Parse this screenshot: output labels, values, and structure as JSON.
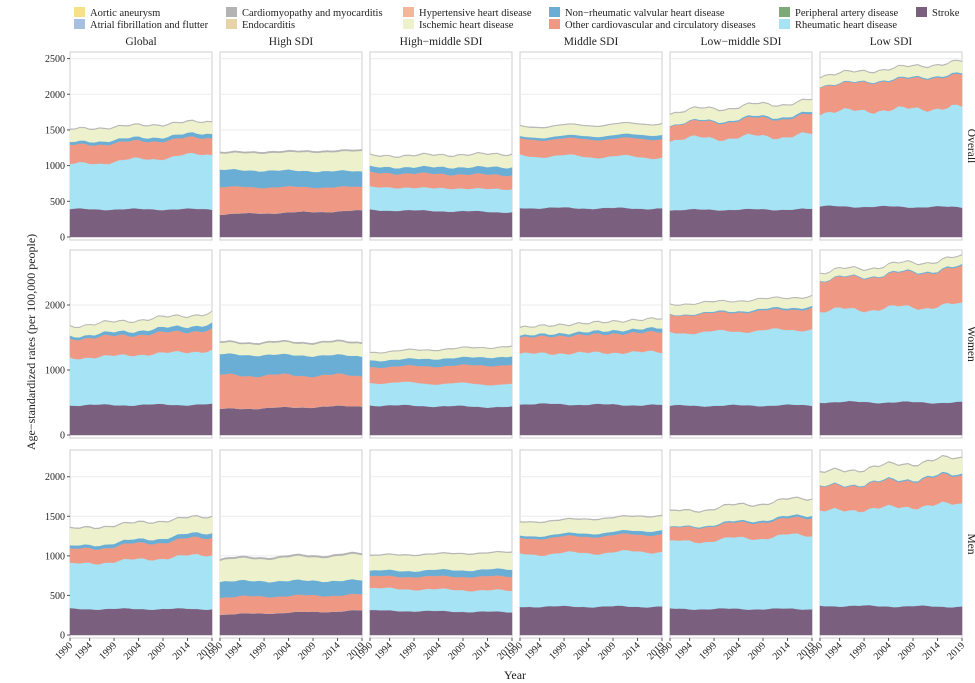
{
  "chart_data": {
    "type": "area",
    "stacked": true,
    "xlabel": "Year",
    "ylabel": "Age−standardized rates (per 100,000 people)",
    "x_ticks": [
      "1990",
      "1994",
      "1999",
      "2004",
      "2009",
      "2014",
      "2019"
    ],
    "x_range": [
      1990,
      2019
    ],
    "columns": [
      "Global",
      "High SDI",
      "High−middle SDI",
      "Middle SDI",
      "Low−middle SDI",
      "Low SDI"
    ],
    "rows": [
      {
        "label": "Overall",
        "ylim": [
          0,
          2550
        ],
        "yticks": [
          0,
          500,
          1000,
          1500,
          2000,
          2500
        ]
      },
      {
        "label": "Women",
        "ylim": [
          0,
          2800
        ],
        "yticks": [
          0,
          1000,
          2000
        ]
      },
      {
        "label": "Men",
        "ylim": [
          0,
          2300
        ],
        "yticks": [
          0,
          500,
          1000,
          1500,
          2000
        ]
      }
    ],
    "legend": [
      {
        "name": "Aortic aneurysm",
        "color": "#f6e08a"
      },
      {
        "name": "Atrial fibrillation and flutter",
        "color": "#a7c0e0"
      },
      {
        "name": "Cardiomyopathy and myocarditis",
        "color": "#b3b3b3"
      },
      {
        "name": "Endocarditis",
        "color": "#e8d2a8"
      },
      {
        "name": "Hypertensive heart disease",
        "color": "#f5b59a"
      },
      {
        "name": "Ischemic heart disease",
        "color": "#eef2cc"
      },
      {
        "name": "Non−rheumatic valvular heart disease",
        "color": "#6aaed6"
      },
      {
        "name": "Other cardiovascular and circulatory diseases",
        "color": "#ef9985"
      },
      {
        "name": "Peripheral artery disease",
        "color": "#7eaa7a"
      },
      {
        "name": "Rheumatic heart disease",
        "color": "#a6e3f5"
      },
      {
        "name": "Stroke",
        "color": "#7b5f7e"
      }
    ],
    "stack_order_bottom_to_top": [
      "Stroke",
      "Rheumatic heart disease",
      "Other cardiovascular and circulatory diseases",
      "Non−rheumatic valvular heart disease",
      "Ischemic heart disease",
      "Cardiomyopathy and myocarditis",
      "Atrial fibrillation and flutter",
      "Hypertensive heart disease",
      "Endocarditis",
      "Peripheral artery disease",
      "Aortic aneurysm"
    ],
    "approx_component_values_1990_to_2019": {
      "Overall": {
        "Global": {
          "Stroke": [
            390,
            390
          ],
          "Rheumatic heart disease": [
            620,
            780
          ],
          "Other cardiovascular and circulatory diseases": [
            270,
            230
          ],
          "Non−rheumatic valvular heart disease": [
            40,
            60
          ],
          "Ischemic heart disease": [
            180,
            160
          ],
          "Cardiomyopathy and myocarditis": [
            10,
            10
          ]
        },
        "High SDI": {
          "Stroke": [
            320,
            370
          ],
          "Rheumatic heart disease": [
            0,
            0
          ],
          "Other cardiovascular and circulatory diseases": [
            380,
            330
          ],
          "Non−rheumatic valvular heart disease": [
            240,
            220
          ],
          "Ischemic heart disease": [
            230,
            280
          ],
          "Cardiomyopathy and myocarditis": [
            20,
            20
          ]
        },
        "High−middle SDI": {
          "Stroke": [
            380,
            350
          ],
          "Rheumatic heart disease": [
            320,
            320
          ],
          "Other cardiovascular and circulatory diseases": [
            200,
            200
          ],
          "Non−rheumatic valvular heart disease": [
            80,
            110
          ],
          "Ischemic heart disease": [
            150,
            180
          ],
          "Cardiomyopathy and myocarditis": [
            10,
            10
          ]
        },
        "Middle SDI": {
          "Stroke": [
            410,
            400
          ],
          "Rheumatic heart disease": [
            730,
            720
          ],
          "Other cardiovascular and circulatory diseases": [
            230,
            260
          ],
          "Non−rheumatic valvular heart disease": [
            30,
            60
          ],
          "Ischemic heart disease": [
            140,
            150
          ],
          "Cardiomyopathy and myocarditis": [
            10,
            10
          ]
        },
        "Low−middle SDI": {
          "Stroke": [
            380,
            390
          ],
          "Rheumatic heart disease": [
            990,
            1040
          ],
          "Other cardiovascular and circulatory diseases": [
            210,
            270
          ],
          "Non−rheumatic valvular heart disease": [
            10,
            30
          ],
          "Ischemic heart disease": [
            160,
            170
          ],
          "Cardiomyopathy and myocarditis": [
            10,
            10
          ]
        },
        "Low SDI": {
          "Stroke": [
            430,
            420
          ],
          "Rheumatic heart disease": [
            1320,
            1400
          ],
          "Other cardiovascular and circulatory diseases": [
            370,
            450
          ],
          "Non−rheumatic valvular heart disease": [
            10,
            20
          ],
          "Ischemic heart disease": [
            130,
            160
          ],
          "Cardiomyopathy and myocarditis": [
            10,
            10
          ]
        }
      },
      "Women": {
        "Global": {
          "Stroke": [
            460,
            470
          ],
          "Rheumatic heart disease": [
            720,
            830
          ],
          "Other cardiovascular and circulatory diseases": [
            300,
            320
          ],
          "Non−rheumatic valvular heart disease": [
            40,
            90
          ],
          "Ischemic heart disease": [
            150,
            160
          ],
          "Cardiomyopathy and myocarditis": [
            10,
            10
          ]
        },
        "High SDI": {
          "Stroke": [
            400,
            450
          ],
          "Rheumatic heart disease": [
            0,
            0
          ],
          "Other cardiovascular and circulatory diseases": [
            520,
            470
          ],
          "Non−rheumatic valvular heart disease": [
            320,
            300
          ],
          "Ischemic heart disease": [
            170,
            200
          ],
          "Cardiomyopathy and myocarditis": [
            20,
            20
          ]
        },
        "High−middle SDI": {
          "Stroke": [
            460,
            430
          ],
          "Rheumatic heart disease": [
            350,
            350
          ],
          "Other cardiovascular and circulatory diseases": [
            240,
            300
          ],
          "Non−rheumatic valvular heart disease": [
            100,
            130
          ],
          "Ischemic heart disease": [
            120,
            150
          ],
          "Cardiomyopathy and myocarditis": [
            10,
            10
          ]
        },
        "Middle SDI": {
          "Stroke": [
            480,
            460
          ],
          "Rheumatic heart disease": [
            770,
            820
          ],
          "Other cardiovascular and circulatory diseases": [
            250,
            310
          ],
          "Non−rheumatic valvular heart disease": [
            30,
            60
          ],
          "Ischemic heart disease": [
            120,
            140
          ],
          "Cardiomyopathy and myocarditis": [
            10,
            10
          ]
        },
        "Low−middle SDI": {
          "Stroke": [
            450,
            460
          ],
          "Rheumatic heart disease": [
            1120,
            1170
          ],
          "Other cardiovascular and circulatory diseases": [
            270,
            320
          ],
          "Non−rheumatic valvular heart disease": [
            10,
            30
          ],
          "Ischemic heart disease": [
            150,
            150
          ],
          "Cardiomyopathy and myocarditis": [
            10,
            10
          ]
        },
        "Low SDI": {
          "Stroke": [
            510,
            500
          ],
          "Rheumatic heart disease": [
            1400,
            1500
          ],
          "Other cardiovascular and circulatory diseases": [
            470,
            560
          ],
          "Non−rheumatic valvular heart disease": [
            10,
            20
          ],
          "Ischemic heart disease": [
            110,
            140
          ],
          "Cardiomyopathy and myocarditis": [
            10,
            10
          ]
        }
      },
      "Men": {
        "Global": {
          "Stroke": [
            330,
            330
          ],
          "Rheumatic heart disease": [
            560,
            690
          ],
          "Other cardiovascular and circulatory diseases": [
            180,
            220
          ],
          "Non−rheumatic valvular heart disease": [
            40,
            60
          ],
          "Ischemic heart disease": [
            220,
            200
          ],
          "Cardiomyopathy and myocarditis": [
            10,
            10
          ]
        },
        "High SDI": {
          "Stroke": [
            260,
            310
          ],
          "Rheumatic heart disease": [
            0,
            0
          ],
          "Other cardiovascular and circulatory diseases": [
            220,
            200
          ],
          "Non−rheumatic valvular heart disease": [
            200,
            180
          ],
          "Ischemic heart disease": [
            270,
            320
          ],
          "Cardiomyopathy and myocarditis": [
            20,
            20
          ]
        },
        "High−middle SDI": {
          "Stroke": [
            310,
            290
          ],
          "Rheumatic heart disease": [
            280,
            270
          ],
          "Other cardiovascular and circulatory diseases": [
            150,
            180
          ],
          "Non−rheumatic valvular heart disease": [
            70,
            90
          ],
          "Ischemic heart disease": [
            190,
            210
          ],
          "Cardiomyopathy and myocarditis": [
            10,
            10
          ]
        },
        "Middle SDI": {
          "Stroke": [
            360,
            360
          ],
          "Rheumatic heart disease": [
            660,
            700
          ],
          "Other cardiovascular and circulatory diseases": [
            200,
            220
          ],
          "Non−rheumatic valvular heart disease": [
            30,
            50
          ],
          "Ischemic heart disease": [
            170,
            180
          ],
          "Cardiomyopathy and myocarditis": [
            10,
            10
          ]
        },
        "Low−middle SDI": {
          "Stroke": [
            330,
            330
          ],
          "Rheumatic heart disease": [
            840,
            940
          ],
          "Other cardiovascular and circulatory diseases": [
            170,
            220
          ],
          "Non−rheumatic valvular heart disease": [
            10,
            30
          ],
          "Ischemic heart disease": [
            190,
            210
          ],
          "Cardiomyopathy and myocarditis": [
            10,
            10
          ]
        },
        "Low SDI": {
          "Stroke": [
            370,
            360
          ],
          "Rheumatic heart disease": [
            1190,
            1300
          ],
          "Other cardiovascular and circulatory diseases": [
            300,
            360
          ],
          "Non−rheumatic valvular heart disease": [
            10,
            20
          ],
          "Ischemic heart disease": [
            170,
            200
          ],
          "Cardiomyopathy and myocarditis": [
            10,
            10
          ]
        }
      }
    }
  }
}
